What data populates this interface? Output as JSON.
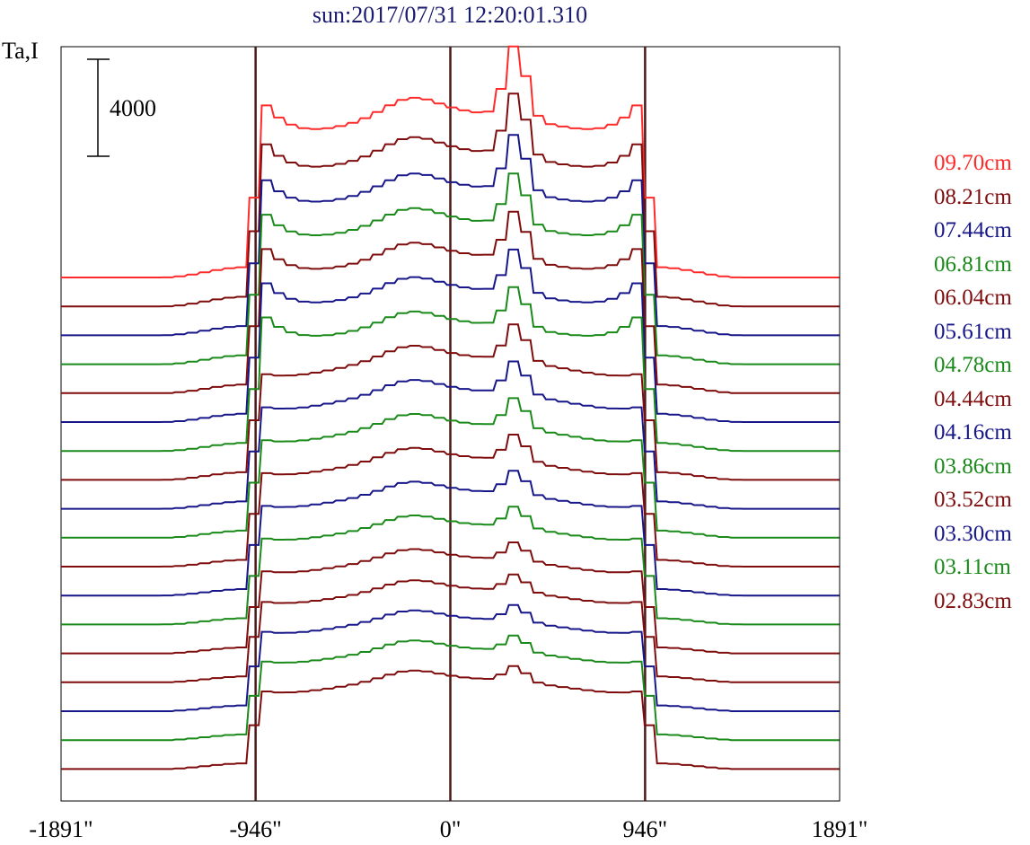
{
  "chart_data": {
    "type": "line",
    "title": "sun:2017/07/31 12:20:01.310",
    "ylabel": "Ta,I",
    "scale_bar_label": "4000",
    "scale_bar_value": 4000,
    "xlim": [
      -1891,
      1891
    ],
    "x_ticks": [
      {
        "value": -1891,
        "label": "-1891\""
      },
      {
        "value": -946,
        "label": "-946\""
      },
      {
        "value": 0,
        "label": "0\""
      },
      {
        "value": 946,
        "label": "946\""
      },
      {
        "value": 1891,
        "label": "1891\""
      }
    ],
    "reference_lines_x": [
      -946,
      0,
      946
    ],
    "series": [
      {
        "name": "09.70cm",
        "color": "#ff2a2a",
        "amp": 1.0
      },
      {
        "name": "08.21cm",
        "color": "#7f0d0d",
        "amp": 0.93
      },
      {
        "name": "07.44cm",
        "color": "#17178a",
        "amp": 0.88
      },
      {
        "name": "06.81cm",
        "color": "#1a8a1a",
        "amp": 0.84
      },
      {
        "name": "06.04cm",
        "color": "#7f0d0d",
        "amp": 0.8
      },
      {
        "name": "05.61cm",
        "color": "#17178a",
        "amp": 0.76
      },
      {
        "name": "04.78cm",
        "color": "#1a8a1a",
        "amp": 0.72
      },
      {
        "name": "04.44cm",
        "color": "#7f0d0d",
        "amp": 0.68
      },
      {
        "name": "04.16cm",
        "color": "#17178a",
        "amp": 0.64
      },
      {
        "name": "03.86cm",
        "color": "#1a8a1a",
        "amp": 0.6
      },
      {
        "name": "03.52cm",
        "color": "#7f0d0d",
        "amp": 0.56
      },
      {
        "name": "03.30cm",
        "color": "#17178a",
        "amp": 0.52
      },
      {
        "name": "03.11cm",
        "color": "#1a8a1a",
        "amp": 0.48
      },
      {
        "name": "02.83cm",
        "color": "#7f0d0d",
        "amp": 0.44
      }
    ],
    "extra_traces": [
      {
        "color": "#7f0d0d",
        "amp": 0.42
      },
      {
        "color": "#17178a",
        "amp": 0.41
      },
      {
        "color": "#1a8a1a",
        "amp": 0.4
      },
      {
        "color": "#7f0d0d",
        "amp": 0.39
      }
    ],
    "grid": false,
    "legend_placement": "right"
  }
}
